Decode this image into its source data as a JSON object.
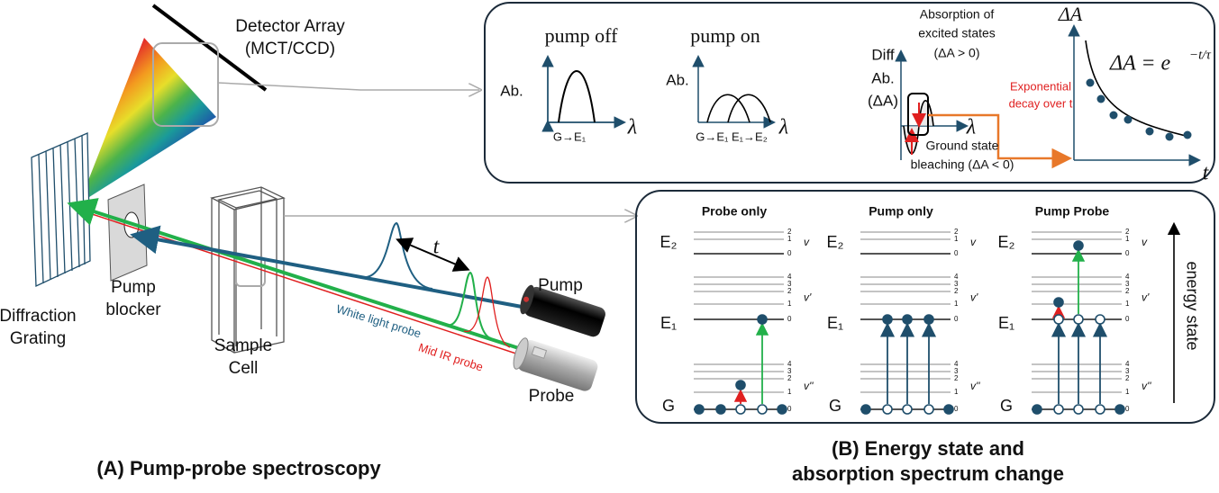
{
  "panel_a": {
    "detector": {
      "line1": "Detector Array",
      "line2": "(MCT/CCD)"
    },
    "grating": {
      "line1": "Diffraction",
      "line2": "Grating"
    },
    "blocker": {
      "line1": "Pump",
      "line2": "blocker"
    },
    "cell": {
      "line1": "Sample",
      "line2": "Cell"
    },
    "delay": "t",
    "pump": "Pump",
    "probe": "Probe",
    "white_light_probe": "White light probe",
    "mid_ir_probe": "Mid IR probe",
    "caption": "(A) Pump-probe spectroscopy"
  },
  "panel_b": {
    "caption": [
      "(B) Energy state and",
      "absorption spectrum change"
    ],
    "spectra": {
      "pump_off": {
        "title": "pump off",
        "y_label": "Ab.",
        "peak_label": "G→E₁",
        "x_label": "λ"
      },
      "pump_on": {
        "title": "pump on",
        "y_label": "Ab.",
        "peak_label": "G→E₁ E₁→E₂",
        "x_label": "λ"
      },
      "difference": {
        "y_label": [
          "Diff",
          "Ab.",
          "(ΔA)"
        ],
        "absorption_note": [
          "Absorption of",
          "excited states",
          "(ΔA > 0)"
        ],
        "bleaching_note": [
          "Ground state",
          "bleaching (ΔA < 0)"
        ],
        "x_label": "λ",
        "decay_note": [
          "Exponential",
          "decay over t"
        ]
      },
      "decay": {
        "y_label": "ΔA",
        "formula": "ΔA = e",
        "formula_exponent": "−t/τ",
        "x_label": "t"
      }
    },
    "energy": {
      "columns": [
        "Probe only",
        "Pump only",
        "Pump Probe"
      ],
      "states": [
        "E₂",
        "E₁",
        "G"
      ],
      "vibrational": [
        "v",
        "v'",
        "v''"
      ],
      "upper_levels": [
        "2",
        "1",
        "0"
      ],
      "lower_levels": [
        "4",
        "3",
        "2",
        "1",
        "0"
      ],
      "axis_label": "energy state"
    }
  }
}
